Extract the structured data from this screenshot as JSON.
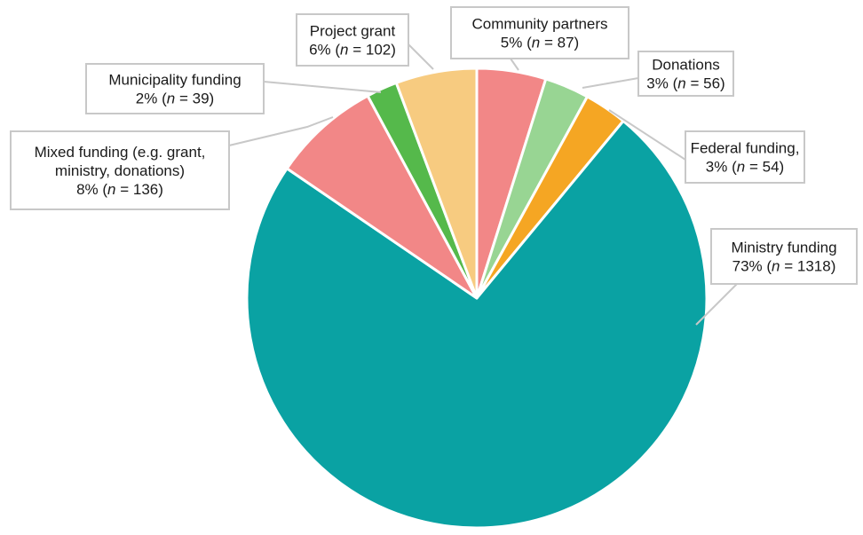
{
  "chart_data": {
    "type": "pie",
    "title": "",
    "slices": [
      {
        "id": "community-partners",
        "lines": [
          "Community partners"
        ],
        "pct_text": "5% (",
        "n_symbol": "n",
        "n_text": " = 87)",
        "percent": 5,
        "count": 87,
        "color": "#f28787"
      },
      {
        "id": "donations",
        "lines": [
          "Donations"
        ],
        "pct_text": "3% (",
        "n_symbol": "n",
        "n_text": " = 56)",
        "percent": 3,
        "count": 56,
        "color": "#98d593"
      },
      {
        "id": "federal-funding",
        "lines": [
          "Federal funding,"
        ],
        "pct_text": "3% (",
        "n_symbol": "n",
        "n_text": " = 54)",
        "percent": 3,
        "count": 54,
        "color": "#f5a623"
      },
      {
        "id": "ministry-funding",
        "lines": [
          "Ministry funding"
        ],
        "pct_text": "73% (",
        "n_symbol": "n",
        "n_text": " = 1318)",
        "percent": 73,
        "count": 1318,
        "color": "#0aa2a3"
      },
      {
        "id": "mixed-funding",
        "lines": [
          "Mixed funding (e.g. grant,",
          "ministry, donations)"
        ],
        "pct_text": "8% (",
        "n_symbol": "n",
        "n_text": " = 136)",
        "percent": 8,
        "count": 136,
        "color": "#f28787"
      },
      {
        "id": "municipality-funding",
        "lines": [
          "Municipality funding"
        ],
        "pct_text": "2% (",
        "n_symbol": "n",
        "n_text": " = 39)",
        "percent": 2,
        "count": 39,
        "color": "#55b94b"
      },
      {
        "id": "project-grant",
        "lines": [
          "Project grant"
        ],
        "pct_text": "6% (",
        "n_symbol": "n",
        "n_text": " = 102)",
        "percent": 6,
        "count": 102,
        "color": "#f7cb80"
      }
    ]
  }
}
